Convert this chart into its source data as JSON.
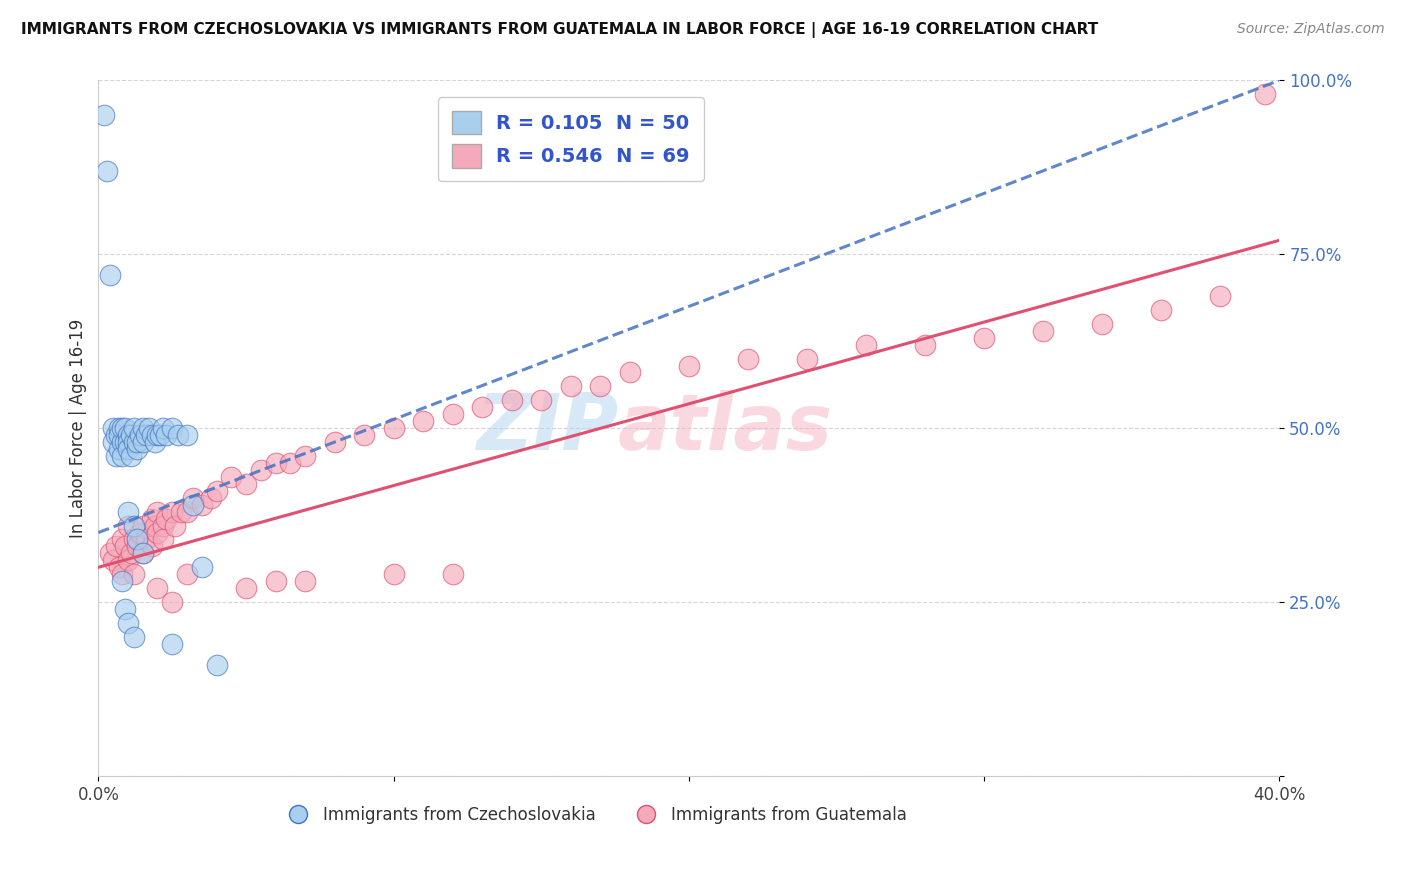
{
  "title": "IMMIGRANTS FROM CZECHOSLOVAKIA VS IMMIGRANTS FROM GUATEMALA IN LABOR FORCE | AGE 16-19 CORRELATION CHART",
  "source": "Source: ZipAtlas.com",
  "ylabel": "In Labor Force | Age 16-19",
  "legend_label_blue": "Immigrants from Czechoslovakia",
  "legend_label_pink": "Immigrants from Guatemala",
  "R_blue": 0.105,
  "N_blue": 50,
  "R_pink": 0.546,
  "N_pink": 69,
  "xlim": [
    0.0,
    0.4
  ],
  "ylim": [
    0.0,
    1.0
  ],
  "x_ticks": [
    0.0,
    0.1,
    0.2,
    0.3,
    0.4
  ],
  "x_tick_labels": [
    "0.0%",
    "",
    "",
    "",
    "40.0%"
  ],
  "y_ticks": [
    0.0,
    0.25,
    0.5,
    0.75,
    1.0
  ],
  "y_tick_labels_right": [
    "",
    "25.0%",
    "50.0%",
    "75.0%",
    "100.0%"
  ],
  "color_blue": "#A8CFEE",
  "color_blue_line": "#4472C4",
  "color_pink": "#F4AABB",
  "color_pink_line": "#E05070",
  "color_legend_text": "#3355CC",
  "watermark_left": "ZIP",
  "watermark_right": "atlas",
  "blue_scatter_x": [
    0.002,
    0.003,
    0.004,
    0.005,
    0.005,
    0.006,
    0.006,
    0.007,
    0.007,
    0.007,
    0.008,
    0.008,
    0.008,
    0.009,
    0.009,
    0.01,
    0.01,
    0.01,
    0.011,
    0.011,
    0.012,
    0.012,
    0.013,
    0.013,
    0.014,
    0.015,
    0.015,
    0.016,
    0.017,
    0.018,
    0.019,
    0.02,
    0.021,
    0.022,
    0.023,
    0.025,
    0.027,
    0.03,
    0.032,
    0.035,
    0.01,
    0.012,
    0.013,
    0.015,
    0.008,
    0.009,
    0.01,
    0.012,
    0.025,
    0.04
  ],
  "blue_scatter_y": [
    0.95,
    0.87,
    0.72,
    0.5,
    0.48,
    0.46,
    0.49,
    0.5,
    0.47,
    0.49,
    0.48,
    0.5,
    0.46,
    0.48,
    0.5,
    0.49,
    0.48,
    0.47,
    0.46,
    0.49,
    0.48,
    0.5,
    0.47,
    0.48,
    0.49,
    0.48,
    0.5,
    0.49,
    0.5,
    0.49,
    0.48,
    0.49,
    0.49,
    0.5,
    0.49,
    0.5,
    0.49,
    0.49,
    0.39,
    0.3,
    0.38,
    0.36,
    0.34,
    0.32,
    0.28,
    0.24,
    0.22,
    0.2,
    0.19,
    0.16
  ],
  "pink_scatter_x": [
    0.004,
    0.005,
    0.006,
    0.007,
    0.008,
    0.008,
    0.009,
    0.01,
    0.01,
    0.011,
    0.012,
    0.012,
    0.013,
    0.014,
    0.015,
    0.015,
    0.016,
    0.018,
    0.018,
    0.019,
    0.02,
    0.02,
    0.022,
    0.022,
    0.023,
    0.025,
    0.026,
    0.028,
    0.03,
    0.032,
    0.035,
    0.038,
    0.04,
    0.045,
    0.05,
    0.055,
    0.06,
    0.065,
    0.07,
    0.08,
    0.09,
    0.1,
    0.11,
    0.12,
    0.13,
    0.14,
    0.15,
    0.16,
    0.17,
    0.18,
    0.2,
    0.22,
    0.24,
    0.26,
    0.28,
    0.3,
    0.32,
    0.34,
    0.36,
    0.38,
    0.395,
    0.02,
    0.025,
    0.03,
    0.05,
    0.06,
    0.07,
    0.1,
    0.12
  ],
  "pink_scatter_y": [
    0.32,
    0.31,
    0.33,
    0.3,
    0.34,
    0.29,
    0.33,
    0.31,
    0.36,
    0.32,
    0.34,
    0.29,
    0.33,
    0.35,
    0.32,
    0.36,
    0.34,
    0.37,
    0.33,
    0.36,
    0.35,
    0.38,
    0.36,
    0.34,
    0.37,
    0.38,
    0.36,
    0.38,
    0.38,
    0.4,
    0.39,
    0.4,
    0.41,
    0.43,
    0.42,
    0.44,
    0.45,
    0.45,
    0.46,
    0.48,
    0.49,
    0.5,
    0.51,
    0.52,
    0.53,
    0.54,
    0.54,
    0.56,
    0.56,
    0.58,
    0.59,
    0.6,
    0.6,
    0.62,
    0.62,
    0.63,
    0.64,
    0.65,
    0.67,
    0.69,
    0.98,
    0.27,
    0.25,
    0.29,
    0.27,
    0.28,
    0.28,
    0.29,
    0.29
  ]
}
